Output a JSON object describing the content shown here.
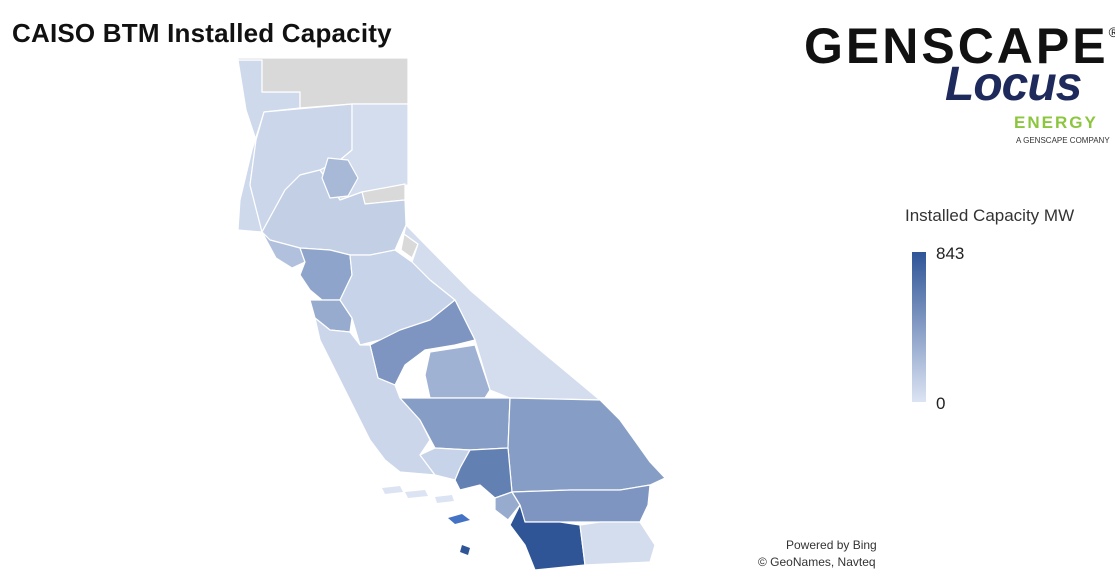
{
  "title": "CAISO BTM Installed Capacity",
  "brand": {
    "name": "GENSCAPE",
    "trademark": "®",
    "sub_name": "Locus",
    "sub_word": "ENERGY",
    "tagline": "A GENSCAPE COMPANY"
  },
  "legend": {
    "title": "Installed Capacity MW",
    "max_label": "843",
    "min_label": "0",
    "color_min": "#dce4f3",
    "color_max": "#2f5597"
  },
  "attribution": {
    "line1": "Powered by Bing",
    "line2": "© GeoNames, Navteq"
  },
  "colors": {
    "no_data": "#d9d9d9",
    "border": "#ffffff"
  },
  "regions": [
    {
      "id": "north-coast",
      "level": 0.08
    },
    {
      "id": "north-central",
      "level": 0.1
    },
    {
      "id": "northeast",
      "level": 0.05
    },
    {
      "id": "northern-nodata",
      "level": null
    },
    {
      "id": "sierra-nodata",
      "level": null
    },
    {
      "id": "alpine-nodata",
      "level": null
    },
    {
      "id": "sacramento-valley",
      "level": 0.15
    },
    {
      "id": "sacramento",
      "level": 0.3
    },
    {
      "id": "bay-north",
      "level": 0.25
    },
    {
      "id": "bay-area",
      "level": 0.45
    },
    {
      "id": "san-jose",
      "level": 0.4
    },
    {
      "id": "central-coast",
      "level": 0.12
    },
    {
      "id": "fresno",
      "level": 0.55
    },
    {
      "id": "tulare",
      "level": 0.35
    },
    {
      "id": "eastern-sierra",
      "level": 0.05
    },
    {
      "id": "slo-santa-barbara",
      "level": 0.1
    },
    {
      "id": "kern",
      "level": 0.5
    },
    {
      "id": "san-bernardino",
      "level": 0.5
    },
    {
      "id": "ventura",
      "level": 0.12
    },
    {
      "id": "los-angeles",
      "level": 0.7
    },
    {
      "id": "orange",
      "level": 0.4
    },
    {
      "id": "riverside",
      "level": 0.55
    },
    {
      "id": "san-diego",
      "level": 1.0
    },
    {
      "id": "imperial",
      "level": 0.05
    }
  ]
}
